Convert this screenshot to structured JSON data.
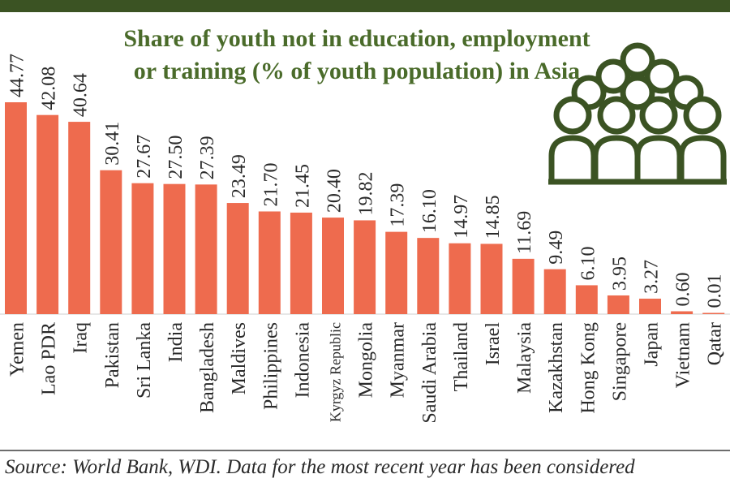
{
  "colors": {
    "bar": "#ee6b4e",
    "title": "#4a6b2a",
    "top_bar": "#3b5323",
    "icon": "#3b5323",
    "text": "#2a2a2a"
  },
  "icon": "crowd-people-icon",
  "source": "Source: World Bank, WDI. Data for the most recent year has been considered",
  "chart_data": {
    "type": "bar",
    "title": "Share of youth not in education, employment or training (% of youth population) in Asia",
    "xlabel": "",
    "ylabel": "",
    "ylim": [
      0,
      45
    ],
    "grid": false,
    "categories": [
      "Yemen",
      "Lao PDR",
      "Iraq",
      "Pakistan",
      "Sri Lanka",
      "India",
      "Bangladesh",
      "Maldives",
      "Philippines",
      "Indonesia",
      "Kyrgyz Republic",
      "Mongolia",
      "Myanmar",
      "Saudi Arabia",
      "Thailand",
      "Israel",
      "Malaysia",
      "Kazakhstan",
      "Hong Kong",
      "Singapore",
      "Japan",
      "Vietnam",
      "Qatar"
    ],
    "values": [
      44.77,
      42.08,
      40.64,
      30.41,
      27.67,
      27.5,
      27.39,
      23.49,
      21.7,
      21.45,
      20.4,
      19.82,
      17.39,
      16.1,
      14.97,
      14.85,
      11.69,
      9.49,
      6.1,
      3.95,
      3.27,
      0.6,
      0.01
    ],
    "value_labels": [
      "44.77",
      "42.08",
      "40.64",
      "30.41",
      "27.67",
      "27.50",
      "27.39",
      "23.49",
      "21.70",
      "21.45",
      "20.40",
      "19.82",
      "17.39",
      "16.10",
      "14.97",
      "14.85",
      "11.69",
      "9.49",
      "6.10",
      "3.95",
      "3.27",
      "0.60",
      "0.01"
    ]
  }
}
